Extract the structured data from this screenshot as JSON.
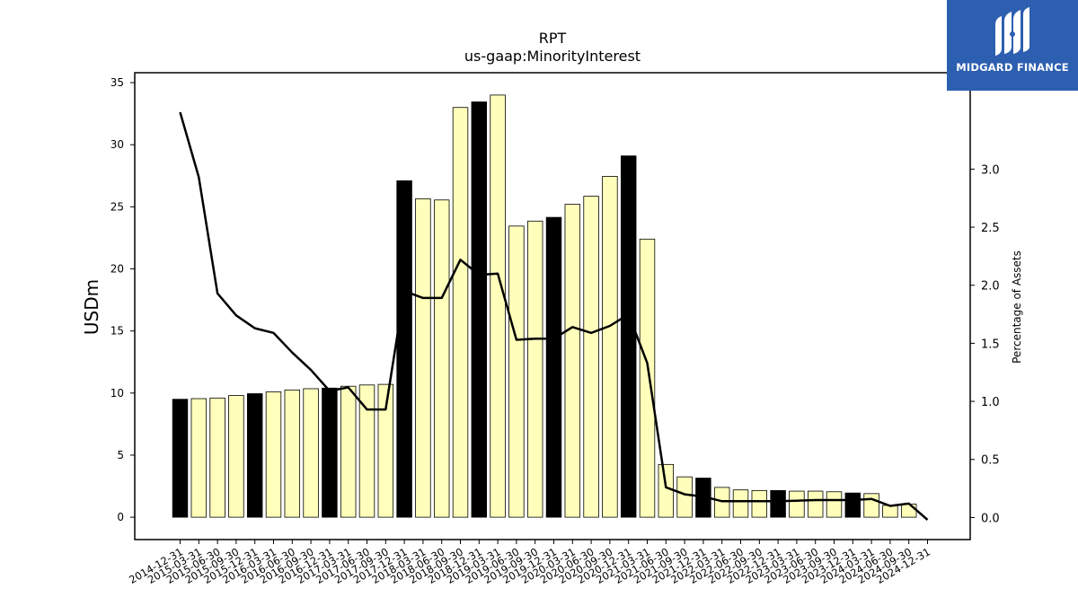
{
  "chart_data": {
    "type": "bar",
    "title": "RPT",
    "subtitle": "us-gaap:MinorityInterest",
    "ylabel": "USDm",
    "y2label": "Percentage of Assets",
    "ylim": [
      -1.8,
      35.8
    ],
    "y2lim": [
      -0.19,
      3.83
    ],
    "yticks": [
      0,
      5,
      10,
      15,
      20,
      25,
      30,
      35
    ],
    "y2ticks": [
      "0.0",
      "0.5",
      "1.0",
      "1.5",
      "2.0",
      "2.5",
      "3.0"
    ],
    "grid": false,
    "categories": [
      "2014-12-31",
      "2015-03-31",
      "2015-06-30",
      "2015-09-30",
      "2015-12-31",
      "2016-03-31",
      "2016-06-30",
      "2016-09-30",
      "2016-12-31",
      "2017-03-31",
      "2017-06-30",
      "2017-09-30",
      "2017-12-31",
      "2018-03-31",
      "2018-06-30",
      "2018-09-30",
      "2018-12-31",
      "2019-03-31",
      "2019-06-30",
      "2019-09-30",
      "2019-12-31",
      "2020-03-31",
      "2020-06-30",
      "2020-09-30",
      "2020-12-31",
      "2021-03-31",
      "2021-06-30",
      "2021-09-30",
      "2021-12-31",
      "2022-03-31",
      "2022-06-30",
      "2022-09-30",
      "2022-12-31",
      "2023-03-31",
      "2023-06-30",
      "2023-09-30",
      "2023-12-31",
      "2024-03-31",
      "2024-06-30",
      "2024-09-30",
      "2024-12-31"
    ],
    "series": [
      {
        "type": "bar",
        "values": [
          9.5,
          9.55,
          9.6,
          9.8,
          9.95,
          10.1,
          10.25,
          10.35,
          10.4,
          10.55,
          10.65,
          10.7,
          27.1,
          25.65,
          25.55,
          33.0,
          33.45,
          34.0,
          23.45,
          23.85,
          24.15,
          25.2,
          25.85,
          27.45,
          29.1,
          22.4,
          4.25,
          3.25,
          3.15,
          2.4,
          2.2,
          2.15,
          2.15,
          2.1,
          2.1,
          2.05,
          1.95,
          1.9,
          0.95,
          1.05,
          0.0
        ],
        "highlight": [
          true,
          false,
          false,
          false,
          true,
          false,
          false,
          false,
          true,
          false,
          false,
          false,
          true,
          false,
          false,
          false,
          true,
          false,
          false,
          false,
          true,
          false,
          false,
          false,
          true,
          false,
          false,
          false,
          true,
          false,
          false,
          false,
          true,
          false,
          false,
          false,
          true,
          false,
          false,
          false,
          true
        ],
        "color": "#ffffbb",
        "highlight_color": "#000000"
      },
      {
        "type": "line",
        "axis": "right",
        "values": [
          3.49,
          2.93,
          1.93,
          1.74,
          1.63,
          1.59,
          1.42,
          1.27,
          1.09,
          1.12,
          0.93,
          0.93,
          1.95,
          1.89,
          1.89,
          2.22,
          2.09,
          2.1,
          1.53,
          1.54,
          1.54,
          1.64,
          1.59,
          1.65,
          1.75,
          1.33,
          0.26,
          0.2,
          0.18,
          0.14,
          0.14,
          0.14,
          0.14,
          0.145,
          0.15,
          0.15,
          0.15,
          0.16,
          0.1,
          0.12,
          -0.02
        ],
        "color": "#000000"
      }
    ]
  },
  "logo": {
    "text": "MIDGARD FINANCE",
    "bg_color": "#2d5fb0"
  }
}
